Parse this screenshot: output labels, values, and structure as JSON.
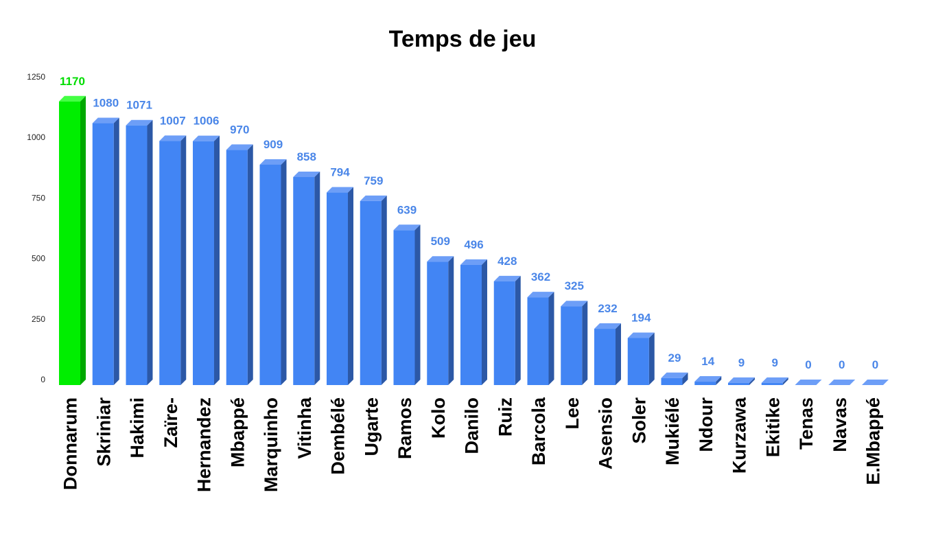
{
  "chart_data": {
    "type": "bar",
    "title": "Temps de jeu",
    "xlabel": "",
    "ylabel": "",
    "ylim": [
      0,
      1250
    ],
    "yticks": [
      0,
      250,
      500,
      750,
      1000,
      1250
    ],
    "grid": false,
    "legend": "none",
    "categories": [
      "Donnarum",
      "Skriniar",
      "Hakimi",
      "Zaïre-",
      "Hernandez",
      "Mbappé",
      "Marquinho",
      "Vitinha",
      "Dembélé",
      "Ugarte",
      "Ramos",
      "Kolo",
      "Danilo",
      "Ruiz",
      "Barcola",
      "Lee",
      "Asensio",
      "Soler",
      "Mukiélé",
      "Ndour",
      "Kurzawa",
      "Ekitike",
      "Tenas",
      "Navas",
      "E.Mbappé"
    ],
    "values": [
      1170,
      1080,
      1071,
      1007,
      1006,
      970,
      909,
      858,
      794,
      759,
      639,
      509,
      496,
      428,
      362,
      325,
      232,
      194,
      29,
      14,
      9,
      9,
      0,
      0,
      0
    ],
    "highlight_index": 0,
    "colors": {
      "bar": "#4285f4",
      "bar_top": "#6d9ef7",
      "bar_side": "#2c58a6",
      "highlight": "#00ee00",
      "highlight_top": "#44ff44",
      "highlight_side": "#00a800",
      "label": "#4a86e8",
      "highlight_label": "#00dd00"
    }
  }
}
